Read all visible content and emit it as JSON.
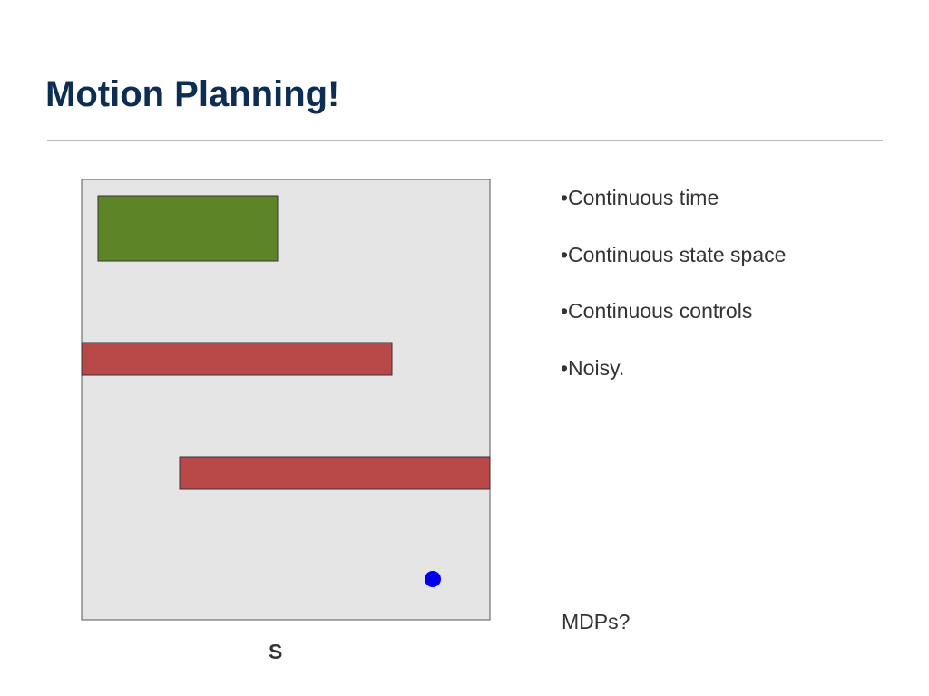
{
  "header": {
    "title": "Motion Planning!"
  },
  "diagram": {
    "label": "S"
  },
  "bullets": [
    "•Continuous time",
    "•Continuous state space",
    "•Continuous controls",
    "•Noisy."
  ],
  "footer_note": "MDPs?"
}
